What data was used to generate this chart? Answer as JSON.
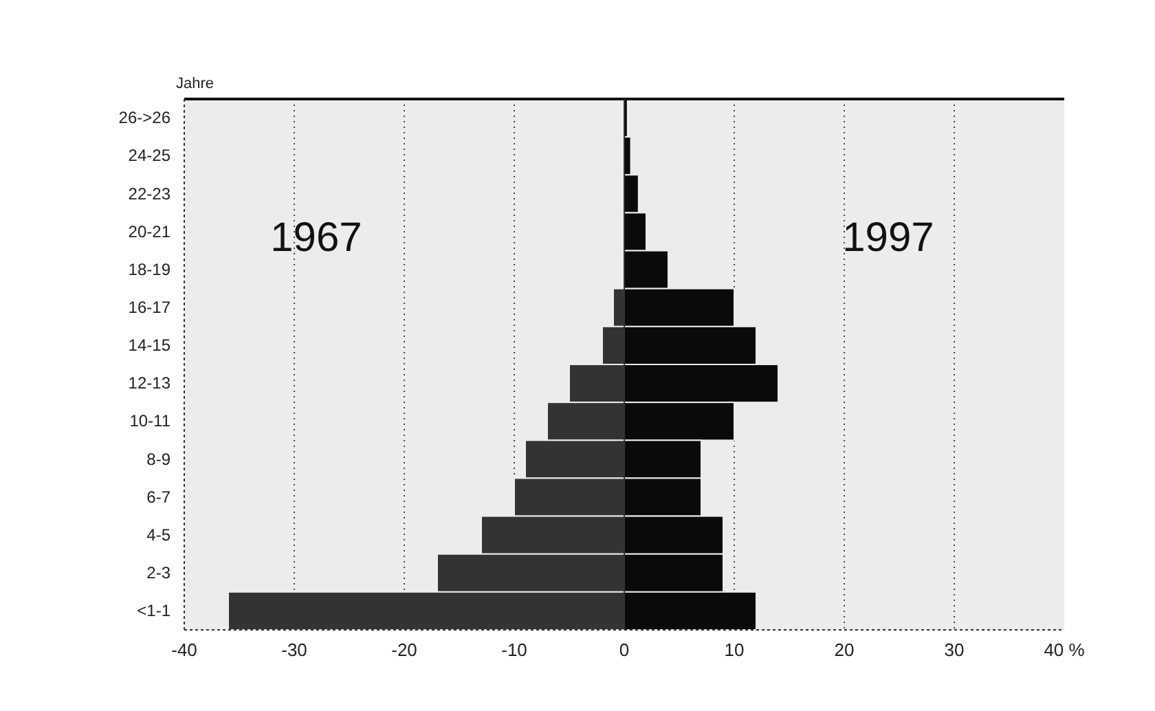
{
  "chart_data": {
    "type": "bar",
    "orientation": "horizontal",
    "stacked": true,
    "ylabel": "Jahre",
    "categories": [
      "26->26",
      "24-25",
      "22-23",
      "20-21",
      "18-19",
      "16-17",
      "14-15",
      "12-13",
      "10-11",
      "8-9",
      "6-7",
      "4-5",
      "2-3",
      "<1-1"
    ],
    "series": [
      {
        "name": "1967",
        "color": "#333333",
        "values": [
          0,
          0,
          0,
          0,
          0,
          -1,
          -2,
          -5,
          -7,
          -9,
          -10,
          -13,
          -17,
          -36
        ]
      },
      {
        "name": "1997",
        "color": "#0a0a0a",
        "values": [
          0.3,
          0.6,
          1.3,
          2,
          4,
          10,
          12,
          14,
          10,
          7,
          7,
          9,
          9,
          12
        ]
      }
    ],
    "xlim": [
      -40,
      40
    ],
    "xticks": [
      -40,
      -30,
      -20,
      -10,
      0,
      10,
      20,
      30,
      {
        "value": 40,
        "label": "40 %"
      }
    ],
    "grid": "x"
  }
}
